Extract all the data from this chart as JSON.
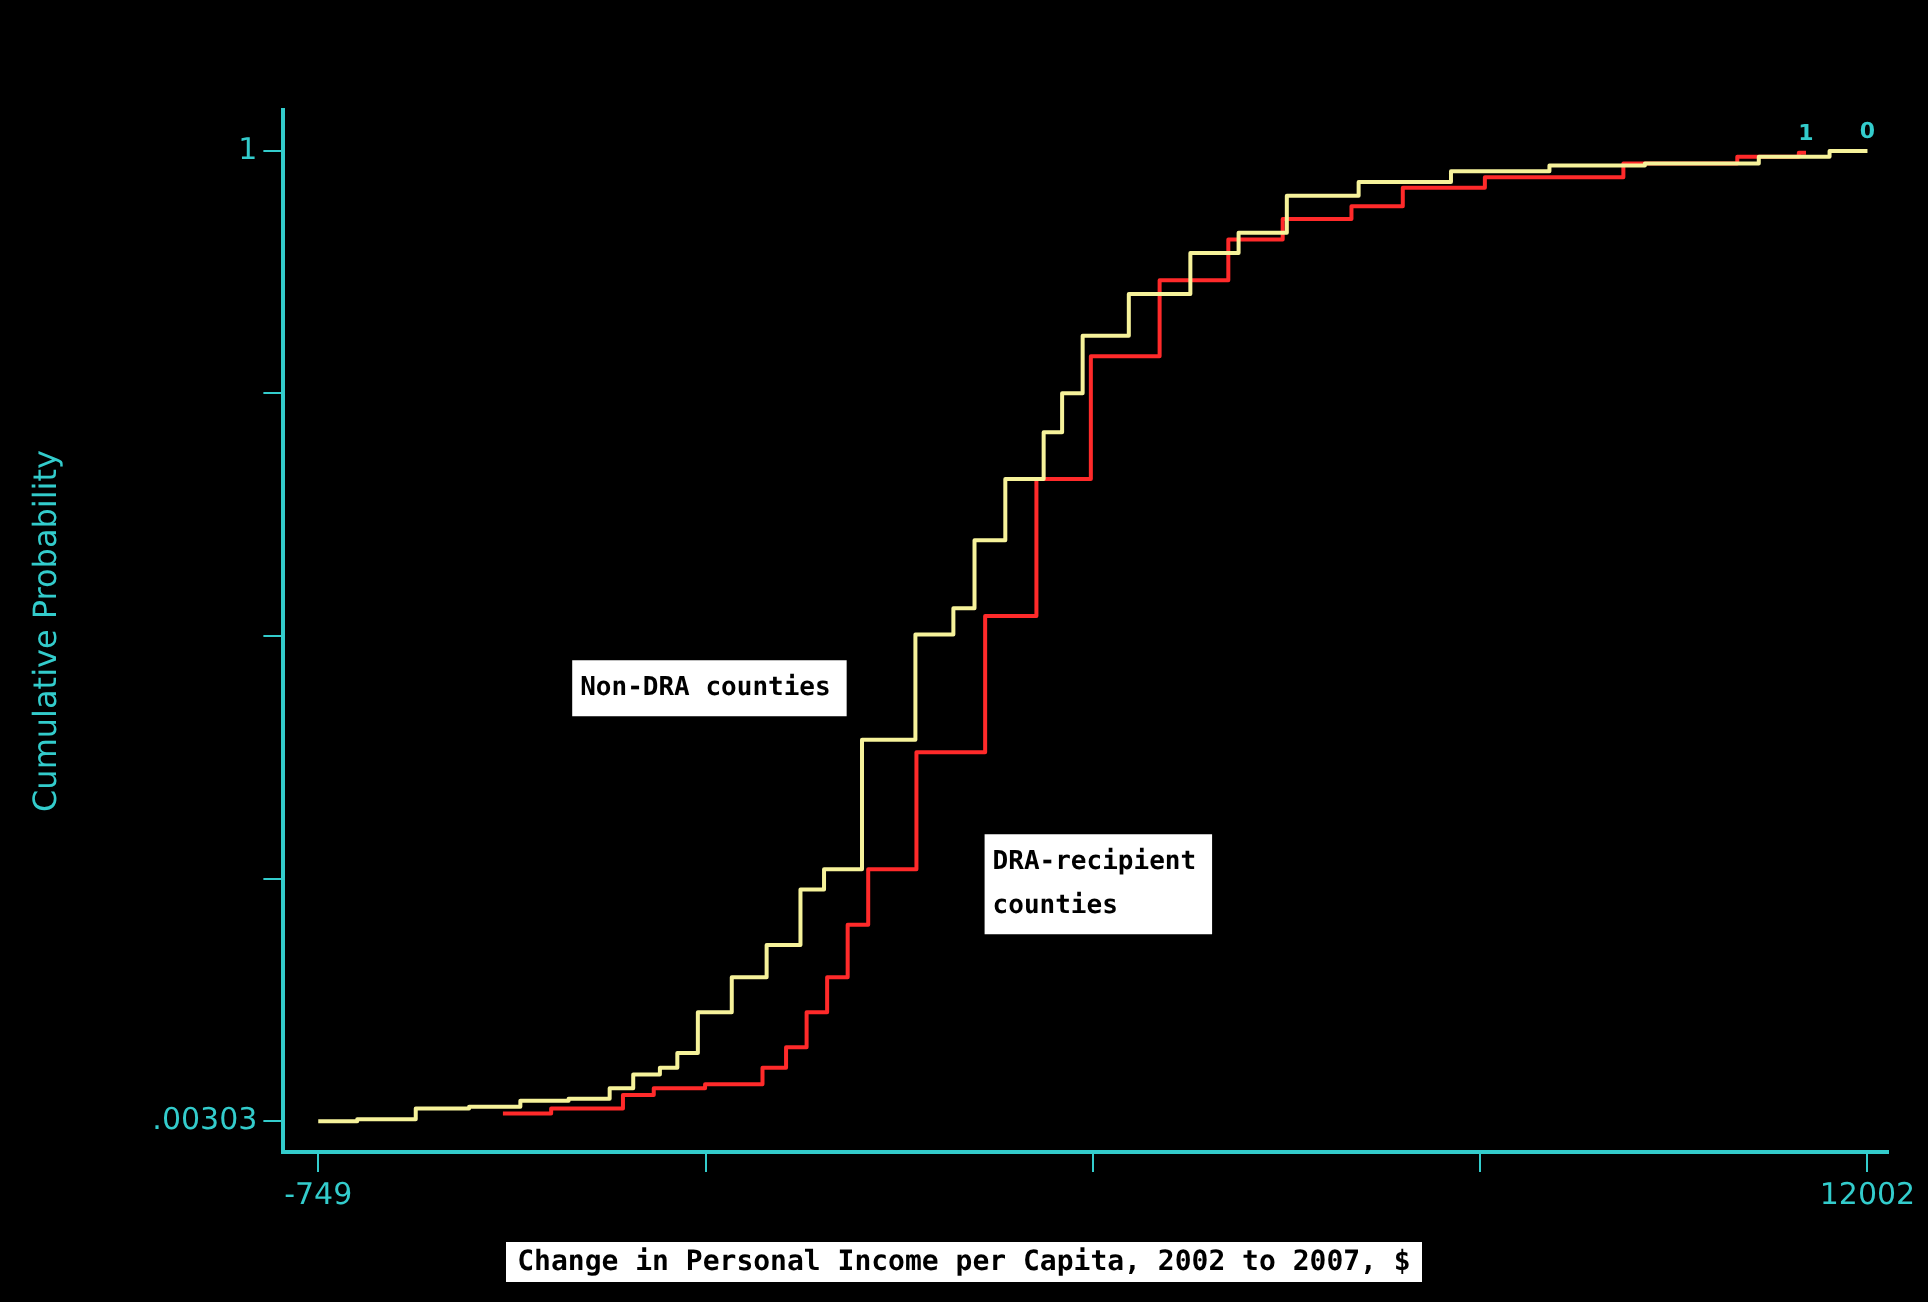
{
  "chart_data": {
    "type": "step",
    "xlabel": "Change in Personal Income per Capita, 2002 to 2007, $",
    "ylabel": "Cumulative Probability",
    "xlim": [
      -1036,
      12171
    ],
    "ylim": [
      -0.0286,
      1.042
    ],
    "xticks": [
      -749,
      {
        "value": 2439,
        "label": null
      },
      {
        "value": 5627,
        "label": null
      },
      {
        "value": 8814,
        "label": null
      },
      12002
    ],
    "yticks": [
      {
        "value": 0.00303,
        "label": ".00303"
      },
      {
        "value": 0.2523,
        "label": null
      },
      {
        "value": 0.5015,
        "label": null
      },
      {
        "value": 0.7508,
        "label": null
      },
      1
    ],
    "grid": false,
    "legend": false,
    "series": [
      {
        "name": "0",
        "color": "#f6f29a",
        "x": [
          -749,
          -107,
          214,
          771,
          1058,
          1565,
          1734,
          1953,
          2173,
          2240,
          2511,
          2798,
          3085,
          3355,
          3473,
          3980,
          4352,
          4605,
          4700,
          5112,
          5331,
          5416,
          5669,
          6176,
          6682,
          6970,
          7476,
          8152,
          8996,
          9773,
          10567,
          11648,
          11732,
          12002
        ],
        "values": [
          0.003,
          0.005,
          0.016,
          0.018,
          0.024,
          0.026,
          0.037,
          0.051,
          0.058,
          0.073,
          0.115,
          0.151,
          0.184,
          0.241,
          0.262,
          0.395,
          0.503,
          0.53,
          0.6,
          0.663,
          0.711,
          0.751,
          0.81,
          0.853,
          0.895,
          0.916,
          0.954,
          0.968,
          0.979,
          0.985,
          0.987,
          0.994,
          1.0,
          1.0
        ]
      },
      {
        "name": "1",
        "color": "#ff2a2a",
        "x": [
          771,
          1565,
          1953,
          2072,
          2798,
          3017,
          3186,
          3355,
          3524,
          3693,
          3862,
          4487,
          4993,
          5331,
          5889,
          6463,
          7020,
          7358,
          8152,
          8203,
          9503,
          10483,
          11378,
          11496
        ],
        "values": [
          0.011,
          0.016,
          0.03,
          0.037,
          0.041,
          0.058,
          0.079,
          0.115,
          0.151,
          0.205,
          0.262,
          0.382,
          0.522,
          0.663,
          0.789,
          0.867,
          0.909,
          0.93,
          0.943,
          0.962,
          0.973,
          0.987,
          0.994,
          0.998
        ]
      }
    ],
    "annotations": [
      "Non-DRA counties",
      "DRA-recipient counties"
    ]
  }
}
